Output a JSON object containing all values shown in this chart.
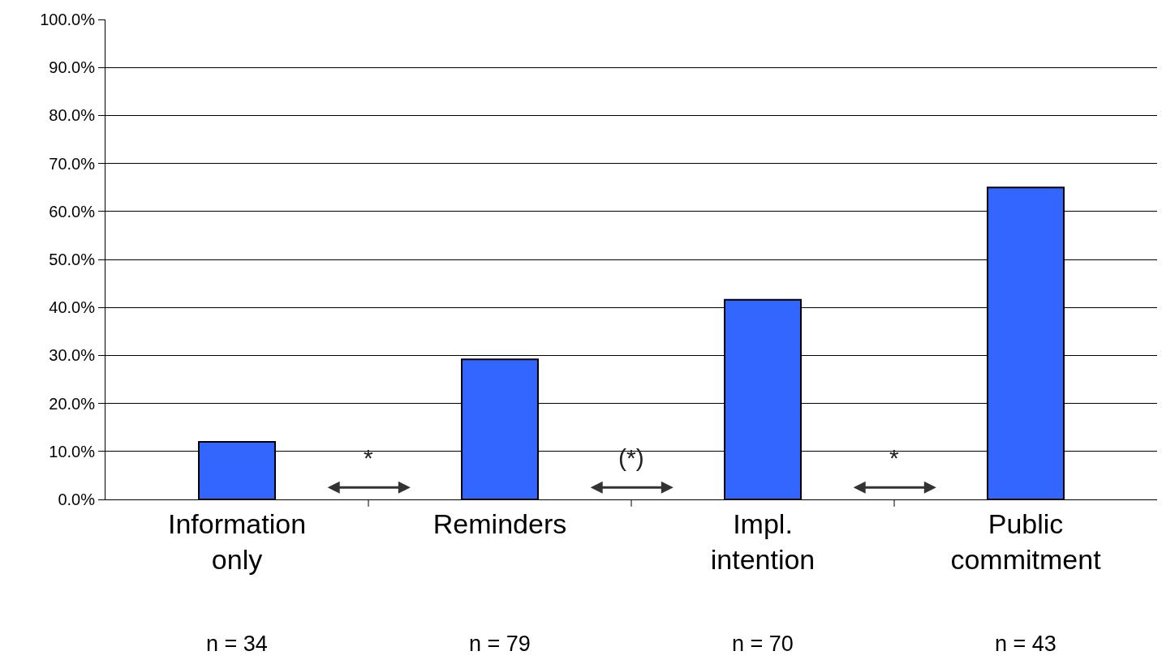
{
  "chart_data": {
    "type": "bar",
    "categories": [
      "Information only",
      "Reminders",
      "Impl. intention",
      "Public commitment"
    ],
    "values": [
      12.0,
      29.2,
      41.6,
      65.0
    ],
    "color": "#3366ff",
    "ylim": [
      0,
      100
    ],
    "yticks": [
      {
        "value": 0,
        "label": "0.0%"
      },
      {
        "value": 10,
        "label": "10.0%"
      },
      {
        "value": 20,
        "label": "20.0%"
      },
      {
        "value": 30,
        "label": "30.0%"
      },
      {
        "value": 40,
        "label": "40.0%"
      },
      {
        "value": 50,
        "label": "50.0%"
      },
      {
        "value": 60,
        "label": "60.0%"
      },
      {
        "value": 70,
        "label": "70.0%"
      },
      {
        "value": 80,
        "label": "80.0%"
      },
      {
        "value": 90,
        "label": "90.0%"
      },
      {
        "value": 100,
        "label": "100.0%"
      }
    ],
    "grid": "y",
    "annotations": [
      "n = 34",
      "n = 79",
      "n = 70",
      "n = 43",
      "*",
      "(*)",
      "*"
    ]
  }
}
